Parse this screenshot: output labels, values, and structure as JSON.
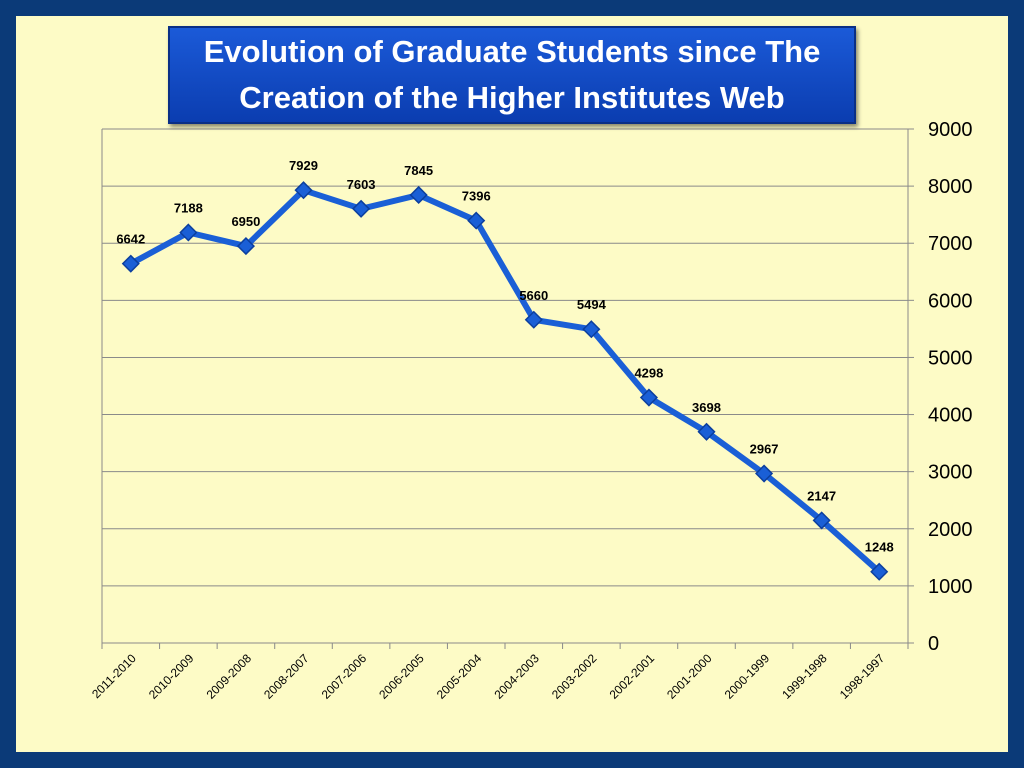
{
  "colors": {
    "background": "#0b3a78",
    "plot_area": "#fdfbc6",
    "title_box": "#1b5ad8",
    "line": "#1a5fd6",
    "marker": "#1a5fd6",
    "gridline": "#8a8a8a"
  },
  "chart_data": {
    "type": "line",
    "title": "Evolution of Graduate Students since The Creation of the Higher Institutes Web",
    "xlabel": "",
    "ylabel": "",
    "categories": [
      "2011-2010",
      "2010-2009",
      "2009-2008",
      "2008-2007",
      "2007-2006",
      "2006-2005",
      "2005-2004",
      "2004-2003",
      "2003-2002",
      "2002-2001",
      "2001-2000",
      "2000-1999",
      "1999-1998",
      "1998-1997"
    ],
    "series": [
      {
        "values": [
          6642,
          7188,
          6950,
          7929,
          7603,
          7845,
          7396,
          5660,
          5494,
          4298,
          3698,
          2967,
          2147,
          1248
        ]
      }
    ],
    "ylim": [
      0,
      9000
    ],
    "yticks": [
      "0",
      "1000",
      "2000",
      "3000",
      "4000",
      "5000",
      "6000",
      "7000",
      "8000",
      "9000"
    ],
    "y_axis_side": "right",
    "grid": true,
    "marker": "diamond",
    "data_labels": true
  }
}
